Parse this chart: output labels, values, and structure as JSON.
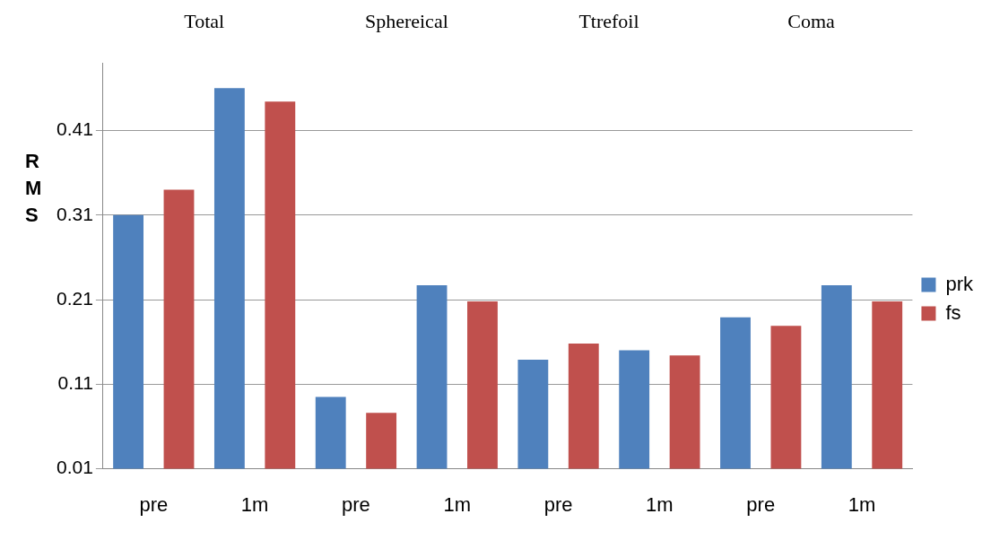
{
  "chart_data": {
    "type": "bar",
    "ylabel": "RMS",
    "categories": [
      "pre",
      "1m",
      "pre",
      "1m",
      "pre",
      "1m",
      "pre",
      "1m"
    ],
    "series": [
      {
        "name": "prk",
        "color": "#4f81bd",
        "values": [
          0.31,
          0.46,
          0.095,
          0.227,
          0.139,
          0.15,
          0.189,
          0.227
        ]
      },
      {
        "name": "fs",
        "color": "#c0504d",
        "values": [
          0.34,
          0.444,
          0.076,
          0.208,
          0.158,
          0.144,
          0.179,
          0.208
        ]
      }
    ],
    "ylim": [
      0.01,
      0.49
    ],
    "yticks": [
      0.01,
      0.11,
      0.21,
      0.31,
      0.41
    ],
    "grid": "y",
    "legend": "right",
    "annotations": [
      "Total",
      "Sphereical",
      "Ttrefoil",
      "Coma"
    ]
  }
}
